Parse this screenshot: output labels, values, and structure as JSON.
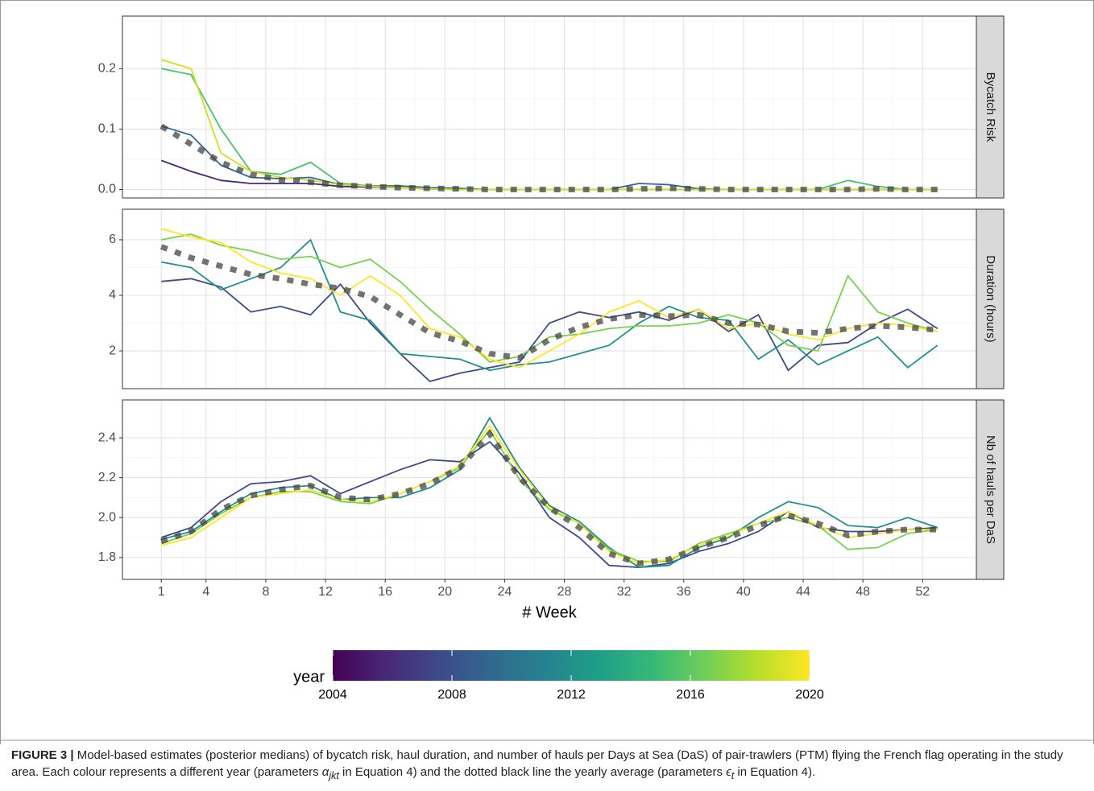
{
  "chart_data": [
    {
      "type": "line",
      "strip": "Bycatch Risk",
      "x": [
        1,
        3,
        5,
        7,
        9,
        11,
        13,
        15,
        17,
        19,
        21,
        23,
        25,
        27,
        29,
        31,
        33,
        35,
        37,
        39,
        41,
        43,
        45,
        47,
        49,
        51,
        53
      ],
      "xlim": [
        -1.6,
        55.6
      ],
      "xticks": [
        1,
        4,
        8,
        12,
        16,
        20,
        24,
        28,
        32,
        36,
        40,
        44,
        48,
        52
      ],
      "ylim": [
        -0.014,
        0.287
      ],
      "yticks": [
        {
          "value": 0,
          "label": "0.0"
        },
        0.1,
        0.2
      ],
      "grid": true,
      "series": [
        {
          "color": "#482878",
          "values": [
            0.048,
            0.03,
            0.015,
            0.01,
            0.01,
            0.01,
            0.005,
            0.004,
            0.003,
            0.001,
            0,
            0,
            0,
            0,
            0,
            0,
            0,
            0,
            0,
            0,
            0,
            0,
            0,
            0,
            0,
            0,
            0
          ]
        },
        {
          "color": "#31688e",
          "values": [
            0.105,
            0.09,
            0.04,
            0.02,
            0.018,
            0.02,
            0.008,
            0.006,
            0.006,
            0.003,
            0.002,
            0,
            0,
            0,
            0,
            0,
            0.01,
            0.008,
            0.001,
            0,
            0,
            0,
            0,
            0,
            0,
            0,
            0
          ]
        },
        {
          "color": "#4ac16d",
          "values": [
            0.2,
            0.19,
            0.1,
            0.03,
            0.025,
            0.045,
            0.01,
            0.006,
            0.003,
            0.001,
            0,
            0,
            0,
            0,
            0,
            0,
            0,
            0,
            0,
            0,
            0,
            0,
            0,
            0.015,
            0.005,
            0,
            0
          ]
        },
        {
          "color": "#d0e11c",
          "values": [
            0.215,
            0.2,
            0.06,
            0.03,
            0.02,
            0.015,
            0.008,
            0.005,
            0.003,
            0.001,
            0,
            0,
            0,
            0,
            0,
            0,
            0,
            0,
            0,
            0,
            0,
            0,
            0,
            0,
            0,
            0,
            0
          ]
        },
        {
          "color": "#444444",
          "style": "dashed",
          "values": [
            0.105,
            0.075,
            0.045,
            0.025,
            0.016,
            0.012,
            0.007,
            0.005,
            0.003,
            0.002,
            0.001,
            0,
            0,
            0,
            0,
            0,
            0.001,
            0.002,
            0.001,
            0,
            0,
            0,
            0,
            0,
            0.001,
            0,
            0
          ]
        }
      ]
    },
    {
      "type": "line",
      "strip": "Duration (hours)",
      "x": [
        1,
        3,
        5,
        7,
        9,
        11,
        13,
        15,
        17,
        19,
        21,
        23,
        25,
        27,
        29,
        31,
        33,
        35,
        37,
        39,
        41,
        43,
        45,
        47,
        49,
        51,
        53
      ],
      "xlim": [
        -1.6,
        55.6
      ],
      "xticks": [
        1,
        4,
        8,
        12,
        16,
        20,
        24,
        28,
        32,
        36,
        40,
        44,
        48,
        52
      ],
      "ylim": [
        0.64,
        7.1
      ],
      "yticks": [
        2,
        4,
        6
      ],
      "grid": true,
      "series": [
        {
          "color": "#3e4a89",
          "values": [
            4.5,
            4.6,
            4.3,
            3.4,
            3.6,
            3.3,
            4.4,
            3.0,
            1.9,
            0.9,
            1.2,
            1.4,
            1.6,
            3.0,
            3.4,
            3.2,
            3.4,
            3.1,
            3.5,
            2.7,
            3.3,
            1.3,
            2.2,
            2.3,
            3.0,
            3.5,
            2.8
          ]
        },
        {
          "color": "#21918c",
          "values": [
            5.2,
            5.0,
            4.2,
            4.6,
            5.0,
            6.0,
            3.4,
            3.1,
            1.9,
            1.8,
            1.7,
            1.3,
            1.5,
            1.6,
            1.9,
            2.2,
            3.0,
            3.6,
            3.2,
            3.1,
            1.7,
            2.4,
            1.5,
            2.0,
            2.5,
            1.4,
            2.2
          ]
        },
        {
          "color": "#7ad151",
          "values": [
            6.0,
            6.2,
            5.8,
            5.6,
            5.3,
            5.4,
            5.0,
            5.3,
            4.5,
            3.5,
            2.6,
            1.6,
            1.8,
            2.5,
            2.6,
            2.8,
            2.9,
            2.9,
            3.0,
            3.3,
            3.0,
            2.2,
            2.0,
            4.7,
            3.4,
            3.0,
            2.7
          ]
        },
        {
          "color": "#fde725",
          "values": [
            6.4,
            6.1,
            5.9,
            5.2,
            4.8,
            4.6,
            4.0,
            4.7,
            4.0,
            2.8,
            2.5,
            1.7,
            1.4,
            2.0,
            2.6,
            3.4,
            3.8,
            3.2,
            3.5,
            2.8,
            3.0,
            2.6,
            2.4,
            2.8,
            3.0,
            2.9,
            2.7
          ]
        },
        {
          "color": "#444444",
          "style": "dashed",
          "values": [
            5.75,
            5.35,
            5.05,
            4.75,
            4.6,
            4.4,
            4.25,
            3.95,
            3.3,
            2.65,
            2.35,
            1.9,
            1.75,
            2.4,
            2.85,
            3.15,
            3.3,
            3.25,
            3.3,
            3.0,
            2.95,
            2.7,
            2.65,
            2.8,
            2.9,
            2.85,
            2.75
          ]
        }
      ]
    },
    {
      "type": "line",
      "strip": "Nb of hauls per DaS",
      "xlabel": "# Week",
      "x": [
        1,
        3,
        5,
        7,
        9,
        11,
        13,
        15,
        17,
        19,
        21,
        23,
        25,
        27,
        29,
        31,
        33,
        35,
        37,
        39,
        41,
        43,
        45,
        47,
        49,
        51,
        53
      ],
      "xlim": [
        -1.6,
        55.6
      ],
      "xticks": [
        1,
        4,
        8,
        12,
        16,
        20,
        24,
        28,
        32,
        36,
        40,
        44,
        48,
        52
      ],
      "ylim": [
        1.69,
        2.59
      ],
      "yticks": [
        1.8,
        {
          "value": 2,
          "label": "2.0"
        },
        2.2,
        2.4
      ],
      "grid": true,
      "series": [
        {
          "color": "#3e4a89",
          "values": [
            1.9,
            1.95,
            2.08,
            2.17,
            2.18,
            2.21,
            2.12,
            2.18,
            2.24,
            2.29,
            2.28,
            2.38,
            2.22,
            2.0,
            1.9,
            1.76,
            1.75,
            1.77,
            1.83,
            1.87,
            1.93,
            2.03,
            1.95,
            1.93,
            1.93,
            1.94,
            1.95
          ]
        },
        {
          "color": "#21918c",
          "values": [
            1.89,
            1.93,
            2.03,
            2.12,
            2.15,
            2.16,
            2.09,
            2.1,
            2.1,
            2.15,
            2.24,
            2.5,
            2.25,
            2.06,
            1.98,
            1.85,
            1.75,
            1.76,
            1.85,
            1.9,
            2.0,
            2.08,
            2.05,
            1.96,
            1.95,
            2.0,
            1.95
          ]
        },
        {
          "color": "#7ad151",
          "values": [
            1.87,
            1.92,
            2.02,
            2.1,
            2.13,
            2.13,
            2.08,
            2.07,
            2.12,
            2.18,
            2.25,
            2.44,
            2.19,
            2.04,
            1.97,
            1.84,
            1.78,
            1.78,
            1.87,
            1.92,
            1.97,
            2.0,
            1.96,
            1.84,
            1.85,
            1.92,
            1.94
          ]
        },
        {
          "color": "#fde725",
          "values": [
            1.86,
            1.9,
            2.0,
            2.1,
            2.12,
            2.14,
            2.09,
            2.08,
            2.12,
            2.18,
            2.26,
            2.46,
            2.24,
            2.05,
            1.97,
            1.83,
            1.77,
            1.79,
            1.86,
            1.91,
            1.97,
            2.03,
            1.96,
            1.9,
            1.92,
            1.94,
            1.94
          ]
        },
        {
          "color": "#444444",
          "style": "dashed",
          "values": [
            1.88,
            1.93,
            2.04,
            2.11,
            2.14,
            2.16,
            2.1,
            2.09,
            2.12,
            2.17,
            2.25,
            2.42,
            2.2,
            2.05,
            1.95,
            1.82,
            1.77,
            1.79,
            1.85,
            1.9,
            1.96,
            2.01,
            1.97,
            1.91,
            1.93,
            1.94,
            1.94
          ]
        }
      ]
    }
  ],
  "colorbar": {
    "title": "year",
    "lim": [
      2004,
      2020
    ],
    "ticks": [
      2004,
      2008,
      2012,
      2016,
      2020
    ],
    "colors": [
      "#440154",
      "#482878",
      "#3e4a89",
      "#31688e",
      "#26828e",
      "#1f9e89",
      "#35b779",
      "#6ece58",
      "#b5de2b",
      "#fde725"
    ]
  },
  "caption": {
    "label": "FIGURE 3 |",
    "text1": "Model-based estimates (posterior medians) of bycatch risk, haul duration, and number of hauls per Days at Sea (DaS) of pair-trawlers (PTM) flying the French flag operating in the study area. Each colour represents a different year (parameters ",
    "alpha": "α",
    "alpha_sub": "jkt",
    "text2": " in Equation 4) and the dotted black line the yearly average (parameters ",
    "eps": "ϵ",
    "eps_sub": "t",
    "text3": " in Equation 4)."
  }
}
